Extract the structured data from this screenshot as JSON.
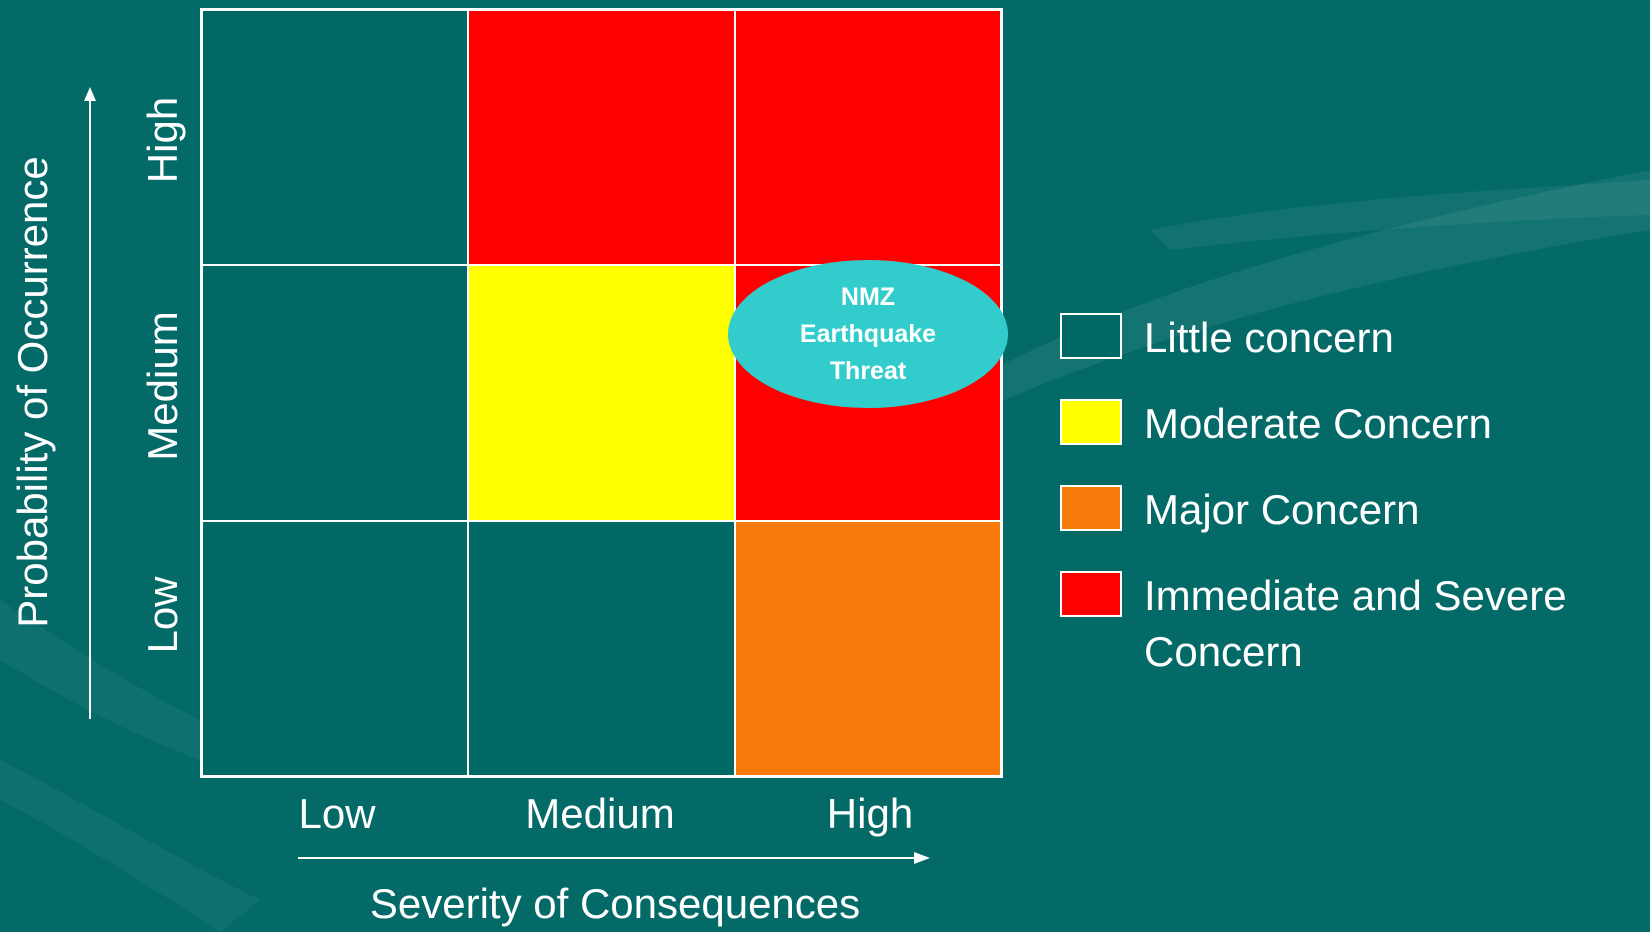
{
  "colors": {
    "background": "#036a68",
    "little": "#006865",
    "moderate": "#ffff00",
    "major": "#f77b0a",
    "severe": "#ff0000",
    "callout": "#33cccc",
    "line": "#ffffff"
  },
  "axes": {
    "y_title": "Probability of Occurrence",
    "x_title": "Severity of Consequences",
    "y_ticks": [
      "High",
      "Medium",
      "Low"
    ],
    "x_ticks": [
      "Low",
      "Medium",
      "High"
    ]
  },
  "matrix": {
    "rows": [
      {
        "probability": "High",
        "cells": [
          "little",
          "severe",
          "severe"
        ]
      },
      {
        "probability": "Medium",
        "cells": [
          "little",
          "moderate",
          "severe"
        ]
      },
      {
        "probability": "Low",
        "cells": [
          "little",
          "little",
          "major"
        ]
      }
    ]
  },
  "callout": {
    "lines": [
      "NMZ",
      "Earthquake",
      "Threat"
    ]
  },
  "legend": [
    {
      "key": "little",
      "label": "Little concern"
    },
    {
      "key": "moderate",
      "label": "Moderate Concern"
    },
    {
      "key": "major",
      "label": "Major Concern"
    },
    {
      "key": "severe",
      "label": "Immediate and Severe Concern"
    }
  ]
}
